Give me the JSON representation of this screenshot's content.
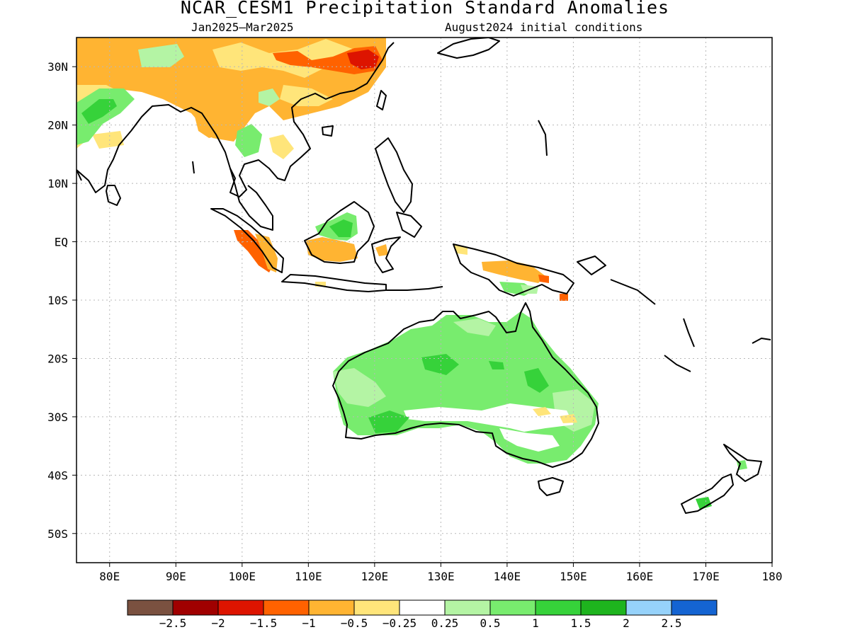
{
  "title": "NCAR_CESM1 Precipitation Standard Anomalies",
  "period": "Jan2025–Mar2025",
  "initial_conditions": "August2024 initial conditions",
  "axes": {
    "lat_labels": [
      "30N",
      "20N",
      "10N",
      "EQ",
      "10S",
      "20S",
      "30S",
      "40S",
      "50S"
    ],
    "lat_values": [
      30,
      20,
      10,
      0,
      -10,
      -20,
      -30,
      -40,
      -50
    ],
    "lon_labels": [
      "80E",
      "90E",
      "100E",
      "110E",
      "120E",
      "130E",
      "140E",
      "150E",
      "160E",
      "170E",
      "180"
    ],
    "lon_values": [
      80,
      90,
      100,
      110,
      120,
      130,
      140,
      150,
      160,
      170,
      180
    ],
    "lon_range": [
      75,
      180
    ],
    "lat_range": [
      -55,
      35
    ],
    "grid": "dotted"
  },
  "colorbar": {
    "colors": [
      "#7a5140",
      "#a00000",
      "#dd1400",
      "#ff6200",
      "#ffb432",
      "#ffe57a",
      "#ffffff",
      "#b4f4a4",
      "#78ec6e",
      "#36d23a",
      "#1eb41e",
      "#96d2fa",
      "#1464d2"
    ],
    "labels": [
      "−2.5",
      "−2",
      "−1.5",
      "−1",
      "−0.5",
      "−0.25",
      "0.25",
      "0.5",
      "1",
      "1.5",
      "2",
      "2.5"
    ]
  }
}
